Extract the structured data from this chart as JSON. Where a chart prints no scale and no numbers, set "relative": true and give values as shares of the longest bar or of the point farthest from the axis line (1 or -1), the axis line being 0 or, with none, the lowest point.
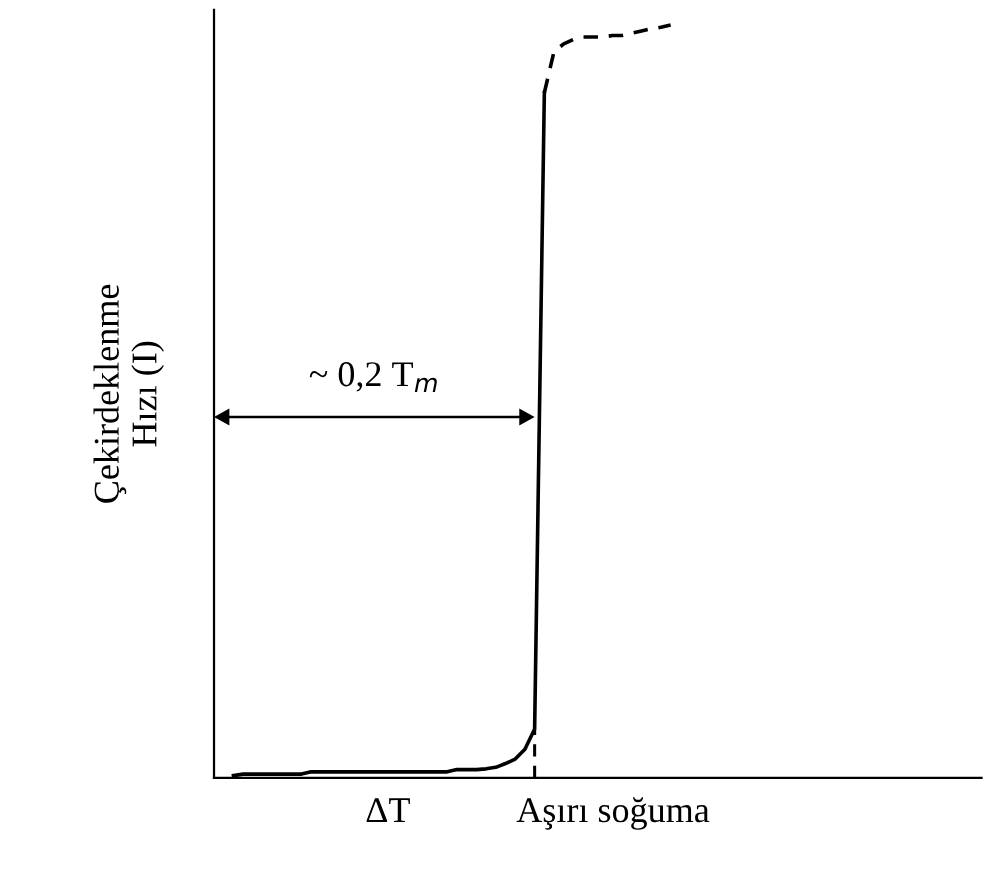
{
  "chart_data": {
    "type": "line",
    "relative": true,
    "xlabel": "ΔT            Aşırı soğuma",
    "ylabel": "Çekirdeklenme\nHızı (I)",
    "categories": [
      null,
      null,
      null,
      null,
      null,
      null,
      null,
      null,
      null,
      null,
      null,
      null,
      null,
      null,
      null,
      null,
      null,
      null,
      null,
      null,
      null,
      null,
      null,
      null,
      null,
      null,
      null,
      null,
      null,
      null,
      null,
      null,
      null,
      null,
      null,
      null,
      null,
      null,
      null,
      null,
      null,
      null,
      null,
      null,
      null,
      null,
      null,
      null,
      null,
      null,
      null,
      null,
      null,
      null,
      null,
      null,
      null,
      null,
      null,
      null,
      null,
      null,
      null,
      null,
      null,
      null,
      null,
      null,
      null,
      null,
      null,
      null,
      null,
      null,
      null,
      null,
      null,
      null
    ],
    "series": [
      {
        "color": "#000000",
        "line_style": "solid",
        "values": [
          null,
          0.003,
          0.005,
          0.005,
          0.005,
          0.005,
          0.005,
          0.005,
          0.005,
          0.008,
          0.008,
          0.008,
          0.008,
          0.008,
          0.008,
          0.008,
          0.008,
          0.008,
          0.008,
          0.008,
          0.008,
          0.008,
          0.008,
          0.008,
          0.011,
          0.011,
          0.011,
          0.012,
          0.014,
          0.019,
          0.025,
          0.038,
          0.065,
          0.91,
          null,
          null,
          null,
          null,
          null,
          null,
          null,
          null,
          null,
          null,
          null,
          null,
          null,
          null,
          null,
          null,
          null,
          null,
          null,
          null,
          null,
          null,
          null,
          null,
          null,
          null,
          null,
          null,
          null,
          null,
          null,
          null,
          null,
          null,
          null,
          null,
          null,
          null,
          null,
          null,
          null,
          null,
          null,
          null
        ]
      },
      {
        "color": "#000000",
        "line_style": "dashed",
        "values": [
          null,
          null,
          null,
          null,
          null,
          null,
          null,
          null,
          null,
          null,
          null,
          null,
          null,
          null,
          null,
          null,
          null,
          null,
          null,
          null,
          null,
          null,
          null,
          null,
          null,
          null,
          null,
          null,
          null,
          null,
          null,
          null,
          null,
          0.91,
          0.965,
          0.975,
          0.981,
          0.984,
          0.984,
          0.984,
          0.986,
          0.986,
          0.989,
          0.992,
          0.995,
          0.997,
          1.0,
          null,
          null,
          null,
          null,
          null,
          null,
          null,
          null,
          null,
          null,
          null,
          null,
          null,
          null,
          null,
          null,
          null,
          null,
          null,
          null,
          null,
          null,
          null,
          null,
          null,
          null,
          null,
          null,
          null,
          null,
          null
        ]
      }
    ],
    "annotations": [
      "~ 0,2 T$_{m}$"
    ],
    "grid": false,
    "legend": false
  }
}
